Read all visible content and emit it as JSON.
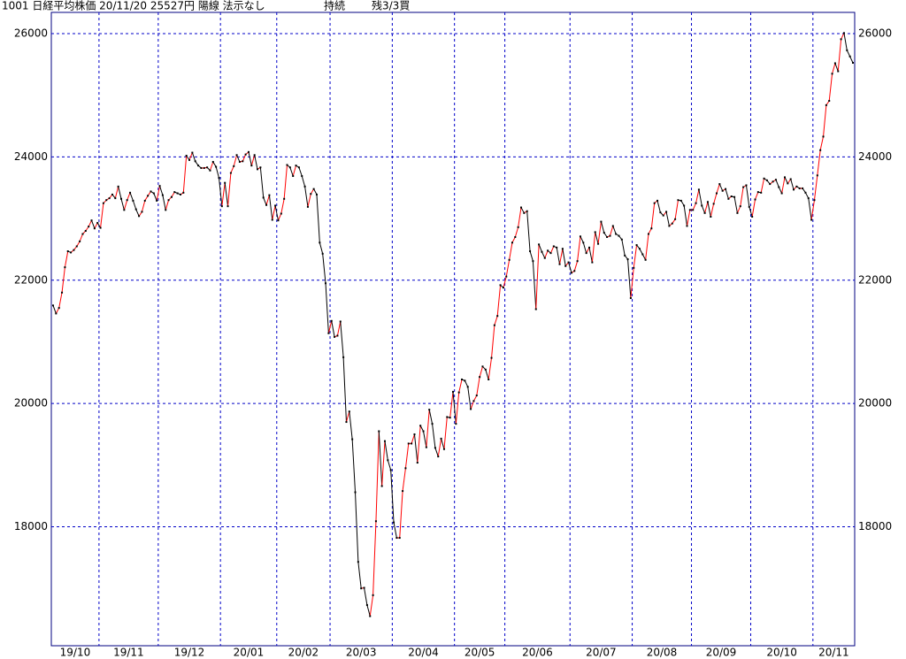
{
  "chart_data": {
    "type": "line",
    "title": "1001 日経平均株価 20/11/20 25527円 陽線 法示なし",
    "annotations": [
      "持続",
      "残3/3買"
    ],
    "categories": [
      "19/10",
      null,
      null,
      null,
      null,
      null,
      null,
      null,
      null,
      null,
      null,
      null,
      null,
      null,
      null,
      null,
      "19/11",
      null,
      null,
      null,
      null,
      null,
      null,
      null,
      null,
      null,
      null,
      null,
      null,
      null,
      null,
      null,
      null,
      null,
      null,
      null,
      "19/12",
      null,
      null,
      null,
      null,
      null,
      null,
      null,
      null,
      null,
      null,
      null,
      null,
      null,
      null,
      null,
      null,
      null,
      null,
      null,
      null,
      "20/01",
      null,
      null,
      null,
      null,
      null,
      null,
      null,
      null,
      null,
      null,
      null,
      null,
      null,
      null,
      null,
      null,
      null,
      null,
      "20/02",
      null,
      null,
      null,
      null,
      null,
      null,
      null,
      null,
      null,
      null,
      null,
      null,
      null,
      null,
      null,
      null,
      null,
      "20/03",
      null,
      null,
      null,
      null,
      null,
      null,
      null,
      null,
      null,
      null,
      null,
      null,
      null,
      null,
      null,
      null,
      null,
      null,
      null,
      null,
      "20/04",
      null,
      null,
      null,
      null,
      null,
      null,
      null,
      null,
      null,
      null,
      null,
      null,
      null,
      null,
      null,
      null,
      null,
      null,
      null,
      null,
      "20/05",
      null,
      null,
      null,
      null,
      null,
      null,
      null,
      null,
      null,
      null,
      null,
      null,
      null,
      null,
      null,
      null,
      "20/06",
      null,
      null,
      null,
      null,
      null,
      null,
      null,
      null,
      null,
      null,
      null,
      null,
      null,
      null,
      null,
      null,
      null,
      null,
      null,
      null,
      null,
      "20/07",
      null,
      null,
      null,
      null,
      null,
      null,
      null,
      null,
      null,
      null,
      null,
      null,
      null,
      null,
      null,
      null,
      null,
      null,
      null,
      null,
      "20/08",
      null,
      null,
      null,
      null,
      null,
      null,
      null,
      null,
      null,
      null,
      null,
      null,
      null,
      null,
      null,
      null,
      null,
      null,
      null,
      "20/09",
      null,
      null,
      null,
      null,
      null,
      null,
      null,
      null,
      null,
      null,
      null,
      null,
      null,
      null,
      null,
      null,
      null,
      null,
      null,
      "20/10",
      null,
      null,
      null,
      null,
      null,
      null,
      null,
      null,
      null,
      null,
      null,
      null,
      null,
      null,
      null,
      null,
      null,
      null,
      null,
      null,
      "20/11",
      null,
      null,
      null,
      null,
      null,
      null,
      null,
      null,
      null,
      null,
      null,
      null,
      null
    ],
    "values": [
      21590,
      21460,
      21550,
      21800,
      22210,
      22470,
      22450,
      22490,
      22550,
      22630,
      22750,
      22800,
      22870,
      22970,
      22840,
      22930,
      22850,
      23250,
      23300,
      23330,
      23390,
      23330,
      23520,
      23320,
      23140,
      23300,
      23420,
      23290,
      23150,
      23040,
      23110,
      23290,
      23370,
      23440,
      23410,
      23290,
      23530,
      23380,
      23140,
      23300,
      23350,
      23430,
      23410,
      23390,
      23420,
      24020,
      23950,
      24070,
      23930,
      23860,
      23820,
      23820,
      23830,
      23780,
      23920,
      23840,
      23660,
      23200,
      23580,
      23200,
      23740,
      23850,
      24030,
      23920,
      23930,
      24040,
      24080,
      23860,
      24030,
      23800,
      23830,
      23340,
      23220,
      23380,
      22980,
      23210,
      22970,
      23080,
      23320,
      23870,
      23830,
      23690,
      23860,
      23830,
      23690,
      23520,
      23190,
      23400,
      23480,
      23390,
      22610,
      22430,
      21950,
      21140,
      21340,
      21080,
      21100,
      21330,
      20750,
      19700,
      19870,
      19420,
      18560,
      17430,
      17000,
      17010,
      16730,
      16550,
      16890,
      18090,
      19550,
      18660,
      19390,
      19080,
      18920,
      18070,
      17820,
      17820,
      18580,
      18950,
      19350,
      19350,
      19500,
      19040,
      19640,
      19550,
      19290,
      19900,
      19670,
      19280,
      19140,
      19430,
      19260,
      19780,
      19770,
      20190,
      19670,
      20180,
      20390,
      20370,
      20270,
      19910,
      20040,
      20130,
      20430,
      20600,
      20550,
      20390,
      20740,
      21270,
      21420,
      21920,
      21880,
      22060,
      22330,
      22610,
      22700,
      22860,
      23180,
      23090,
      23120,
      22470,
      22310,
      21530,
      22580,
      22460,
      22360,
      22480,
      22440,
      22550,
      22530,
      22260,
      22510,
      22230,
      22290,
      22120,
      22150,
      22310,
      22710,
      22610,
      22440,
      22530,
      22290,
      22780,
      22590,
      22950,
      22770,
      22700,
      22720,
      22880,
      22750,
      22720,
      22660,
      22400,
      22340,
      21710,
      22200,
      22570,
      22510,
      22420,
      22330,
      22750,
      22840,
      23250,
      23290,
      23100,
      23050,
      23110,
      22880,
      22920,
      22990,
      23300,
      23290,
      23210,
      22880,
      23140,
      23140,
      23250,
      23470,
      23210,
      23090,
      23270,
      23030,
      23240,
      23410,
      23560,
      23450,
      23480,
      23320,
      23360,
      23350,
      23090,
      23200,
      23510,
      23540,
      23190,
      23030,
      23310,
      23430,
      23420,
      23650,
      23620,
      23560,
      23600,
      23630,
      23510,
      23410,
      23670,
      23570,
      23640,
      23470,
      23520,
      23490,
      23490,
      23420,
      23330,
      22980,
      23300,
      23700,
      24110,
      24330,
      24840,
      24910,
      25350,
      25520,
      25390,
      25910,
      26010,
      25730,
      25630,
      25527
    ],
    "up_color": "#ff0000",
    "down_color": "#000000",
    "point_color": "#000000",
    "grid_color": "#0000c8",
    "ylim": [
      16070,
      26345
    ],
    "yticks": [
      18000,
      20000,
      22000,
      24000,
      26000
    ],
    "grid": true
  }
}
